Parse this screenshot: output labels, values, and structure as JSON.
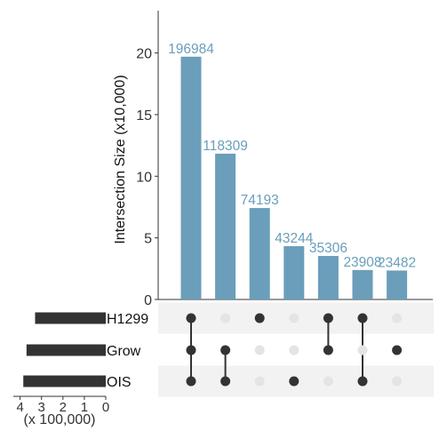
{
  "chart_data": {
    "type": "bar",
    "title": "",
    "ylabel": "Intersection Size (x10,000)",
    "ylim": [
      0,
      23
    ],
    "yticks": [
      "0",
      "5",
      "10",
      "15",
      "20"
    ],
    "ytick_values": [
      0,
      5,
      10,
      15,
      20
    ],
    "bar_color": "#6a9ebb",
    "label_color": "#6a9ebb",
    "dot_on_color": "#333333",
    "dot_off_color": "#e4e4e4",
    "stripe_color": "#f2f2f2",
    "intersections": [
      {
        "label": "196984",
        "size": 196984,
        "sets": [
          "H1299",
          "Grow",
          "OIS"
        ]
      },
      {
        "label": "118309",
        "size": 118309,
        "sets": [
          "Grow",
          "OIS"
        ]
      },
      {
        "label": "74193",
        "size": 74193,
        "sets": [
          "H1299"
        ]
      },
      {
        "label": "43244",
        "size": 43244,
        "sets": [
          "OIS"
        ]
      },
      {
        "label": "35306",
        "size": 35306,
        "sets": [
          "H1299",
          "Grow"
        ]
      },
      {
        "label": "23908",
        "size": 23908,
        "sets": [
          "H1299",
          "OIS"
        ]
      },
      {
        "label": "23482",
        "size": 23482,
        "sets": [
          "Grow"
        ]
      }
    ],
    "sets": [
      {
        "name": "H1299",
        "size": 330000
      },
      {
        "name": "Grow",
        "size": 370000
      },
      {
        "name": "OIS",
        "size": 385000
      }
    ],
    "set_size_axis": {
      "label": "(x 100,000)",
      "ticks": [
        "4",
        "3",
        "2",
        "1",
        "0"
      ],
      "tick_values": [
        4,
        3,
        2,
        1,
        0
      ],
      "max": 4.15
    }
  }
}
